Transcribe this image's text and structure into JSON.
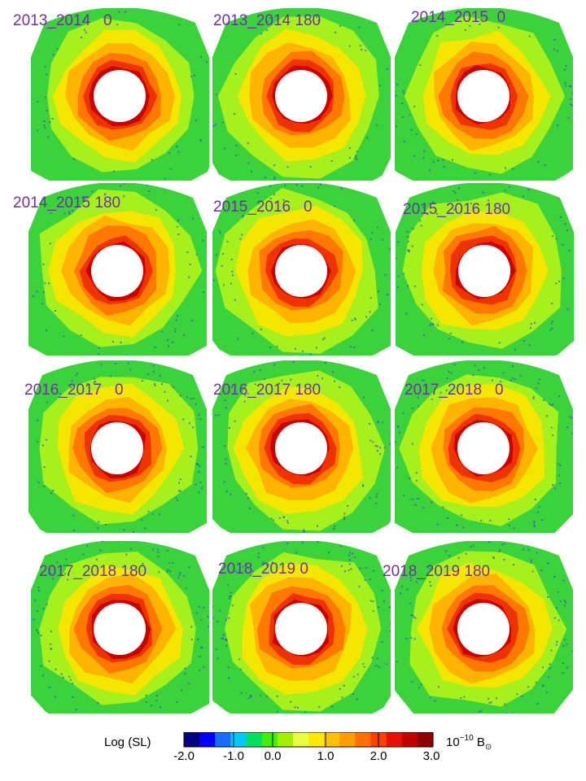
{
  "panels": [
    {
      "label": "2013_2014   0"
    },
    {
      "label": "2013_2014 180"
    },
    {
      "label": "2014_2015  0"
    },
    {
      "label": "2014_2015 180"
    },
    {
      "label": "2015_2016   0"
    },
    {
      "label": "2015_2016 180"
    },
    {
      "label": "2016_2017   0"
    },
    {
      "label": "2016_2017 180"
    },
    {
      "label": "2017_2018   0"
    },
    {
      "label": "2017_2018 180"
    },
    {
      "label": "2018_2019 0"
    },
    {
      "label": "2018_2019 180"
    }
  ],
  "colorbar": {
    "label": "Log (SL)",
    "ticks": [
      "-2.0",
      "-1.0",
      "0.0",
      "1.0",
      "2.0",
      "3.0"
    ],
    "unit_base": "10",
    "unit_exp": "−10",
    "unit_symbol": "B",
    "unit_sub": "⊙",
    "colors": [
      "#000080",
      "#0000ff",
      "#1a6bff",
      "#00c8ff",
      "#00e060",
      "#40f000",
      "#a0f000",
      "#e8ff40",
      "#ffe800",
      "#ffc000",
      "#ff9c00",
      "#ff7000",
      "#ff4000",
      "#e81000",
      "#c00000",
      "#900000"
    ]
  },
  "image_colors": {
    "outer": "#3cd23c",
    "ring1": "#a6f01e",
    "ring2": "#f5e600",
    "ring3": "#ffb400",
    "ring4": "#ff7800",
    "ring5": "#f03200",
    "ring6": "#c80000",
    "hole": "#ffffff",
    "noise": "#3050c8"
  }
}
